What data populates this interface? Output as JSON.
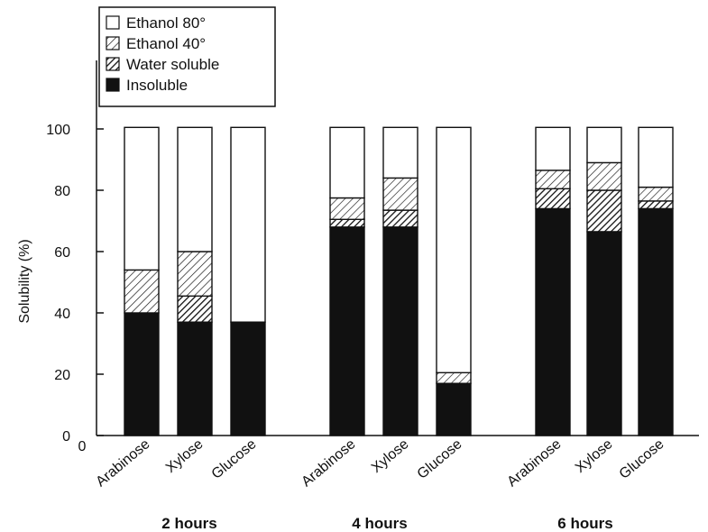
{
  "chart_data": {
    "type": "bar",
    "stacked": true,
    "ylabel": "Solubility (%)",
    "ylim": [
      0,
      110
    ],
    "yticks": [
      0,
      20,
      40,
      60,
      80,
      100
    ],
    "x_origin_label": "0",
    "groups": [
      "2 hours",
      "4 hours",
      "6 hours"
    ],
    "categories": [
      "Arabinose",
      "Xylose",
      "Glucose",
      "Arabinose",
      "Xylose",
      "Glucose",
      "Arabinose",
      "Xylose",
      "Glucose"
    ],
    "category_group": [
      0,
      0,
      0,
      1,
      1,
      1,
      2,
      2,
      2
    ],
    "legend_order": [
      0,
      1,
      2,
      3
    ],
    "series": [
      {
        "name": "Insoluble",
        "pattern": "solid",
        "values": [
          40,
          37,
          37,
          68,
          68,
          17,
          74,
          66.5,
          74
        ]
      },
      {
        "name": "Water soluble",
        "pattern": "dense-hatch",
        "values": [
          0,
          8.5,
          0,
          2.5,
          5.5,
          0,
          6.5,
          13.5,
          2.5
        ]
      },
      {
        "name": "Ethanol 40°",
        "pattern": "light-hatch",
        "values": [
          14,
          14.5,
          0,
          7,
          10.5,
          3.5,
          6,
          9,
          4.5
        ]
      },
      {
        "name": "Ethanol 80°",
        "pattern": "white",
        "values": [
          46.5,
          40.5,
          63.5,
          23,
          16.5,
          80,
          14,
          11.5,
          19.5
        ]
      }
    ],
    "legend": {
      "placement": "top-left",
      "entries": [
        "Ethanol 80°",
        "Ethanol 40°",
        "Water soluble",
        "Insoluble"
      ]
    },
    "colors": {
      "ink": "#111111",
      "fill_light": "#ffffff"
    }
  }
}
